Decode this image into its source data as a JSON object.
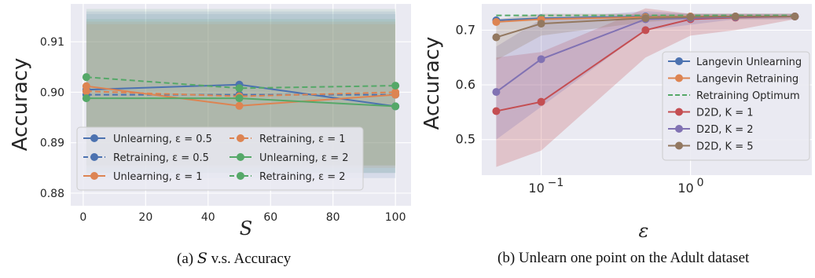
{
  "captions": {
    "a_prefix": "(a) ",
    "a_var": "S",
    "a_rest": " v.s. Accuracy",
    "b": "(b) Unlearn one point on the Adult dataset"
  },
  "chart_data": [
    {
      "type": "line",
      "id": "a",
      "xlabel": "S",
      "ylabel": "Accuracy",
      "xlim": [
        -4,
        105
      ],
      "ylim": [
        0.8775,
        0.9175
      ],
      "xticks": [
        "0",
        "20",
        "40",
        "60",
        "80",
        "100"
      ],
      "yticks": [
        "0.88",
        "0.89",
        "0.90",
        "0.91"
      ],
      "legend_position": "lower-left",
      "grid": true,
      "series": [
        {
          "name": "Unlearning, ε = 0.5",
          "color": "#4c72b0",
          "dashed": false,
          "x": [
            1,
            50,
            100
          ],
          "y": [
            0.9005,
            0.9015,
            0.8972
          ],
          "band": [
            0.884,
            0.9155
          ]
        },
        {
          "name": "Retraining, ε = 0.5",
          "color": "#4c72b0",
          "dashed": true,
          "x": [
            1,
            50,
            100
          ],
          "y": [
            0.8995,
            0.8995,
            0.8995
          ],
          "band": [
            0.883,
            0.916
          ]
        },
        {
          "name": "Unlearning, ε = 1",
          "color": "#dd8452",
          "dashed": false,
          "x": [
            1,
            50,
            100
          ],
          "y": [
            0.9012,
            0.8973,
            0.8995
          ],
          "band": [
            0.8855,
            0.9135
          ]
        },
        {
          "name": "Retraining, ε = 1",
          "color": "#dd8452",
          "dashed": true,
          "x": [
            1,
            50,
            100
          ],
          "y": [
            0.9002,
            0.8992,
            0.9
          ],
          "band": [
            0.885,
            0.914
          ]
        },
        {
          "name": "Unlearning, ε = 2",
          "color": "#55a868",
          "dashed": false,
          "x": [
            1,
            50,
            100
          ],
          "y": [
            0.8988,
            0.8988,
            0.8972
          ],
          "band": [
            0.884,
            0.9145
          ]
        },
        {
          "name": "Retraining, ε = 2",
          "color": "#55a868",
          "dashed": true,
          "x": [
            1,
            50,
            100
          ],
          "y": [
            0.903,
            0.9008,
            0.9013
          ],
          "band": [
            0.8855,
            0.9165
          ]
        }
      ]
    },
    {
      "type": "line",
      "id": "b",
      "xlabel": "ε",
      "ylabel": "Accuracy",
      "xscale": "log",
      "xlim": [
        0.04,
        6.5
      ],
      "ylim": [
        0.435,
        0.748
      ],
      "xticks": [
        {
          "value": 0.1,
          "base": "10",
          "exp": "−1"
        },
        {
          "value": 1,
          "base": "10",
          "exp": "0"
        }
      ],
      "yticks": [
        "0.5",
        "0.6",
        "0.7"
      ],
      "legend_position": "right",
      "grid": true,
      "series": [
        {
          "name": "Langevin Unlearning",
          "color": "#4c72b0",
          "dashed": false,
          "x": [
            0.05,
            0.1,
            0.5,
            1,
            2,
            5
          ],
          "y": [
            0.718,
            0.722,
            0.725,
            0.725,
            0.725,
            0.725
          ]
        },
        {
          "name": "Langevin Retraining",
          "color": "#dd8452",
          "dashed": false,
          "x": [
            0.05,
            0.1,
            0.5,
            1,
            2,
            5
          ],
          "y": [
            0.715,
            0.72,
            0.724,
            0.725,
            0.725,
            0.725
          ]
        },
        {
          "name": "Retraining Optimum",
          "color": "#55a868",
          "dashed": true,
          "x": [
            0.05,
            5
          ],
          "y": [
            0.727,
            0.727
          ]
        },
        {
          "name": "D2D, K = 1",
          "color": "#c44e52",
          "dashed": false,
          "x": [
            0.05,
            0.1,
            0.5,
            1,
            2,
            5
          ],
          "y": [
            0.552,
            0.569,
            0.7,
            0.72,
            0.723,
            0.725
          ],
          "band_lo": [
            0.45,
            0.48,
            0.65,
            0.69,
            0.7,
            0.72
          ],
          "band_hi": [
            0.65,
            0.66,
            0.74,
            0.73,
            0.73,
            0.73
          ]
        },
        {
          "name": "D2D, K = 2",
          "color": "#8172b3",
          "dashed": false,
          "x": [
            0.05,
            0.1,
            0.5,
            1,
            2,
            5
          ],
          "y": [
            0.587,
            0.647,
            0.72,
            0.722,
            0.724,
            0.725
          ],
          "band_lo": [
            0.5,
            0.56,
            0.7,
            0.71,
            0.72,
            0.72
          ],
          "band_hi": [
            0.67,
            0.72,
            0.735,
            0.73,
            0.73,
            0.73
          ]
        },
        {
          "name": "D2D, K = 5",
          "color": "#937860",
          "dashed": false,
          "x": [
            0.05,
            0.1,
            0.5,
            1,
            2,
            5
          ],
          "y": [
            0.687,
            0.712,
            0.722,
            0.724,
            0.725,
            0.725
          ],
          "band_lo": [
            0.645,
            0.69,
            0.715,
            0.72,
            0.72,
            0.72
          ],
          "band_hi": [
            0.72,
            0.73,
            0.73,
            0.73,
            0.73,
            0.73
          ]
        }
      ]
    }
  ]
}
